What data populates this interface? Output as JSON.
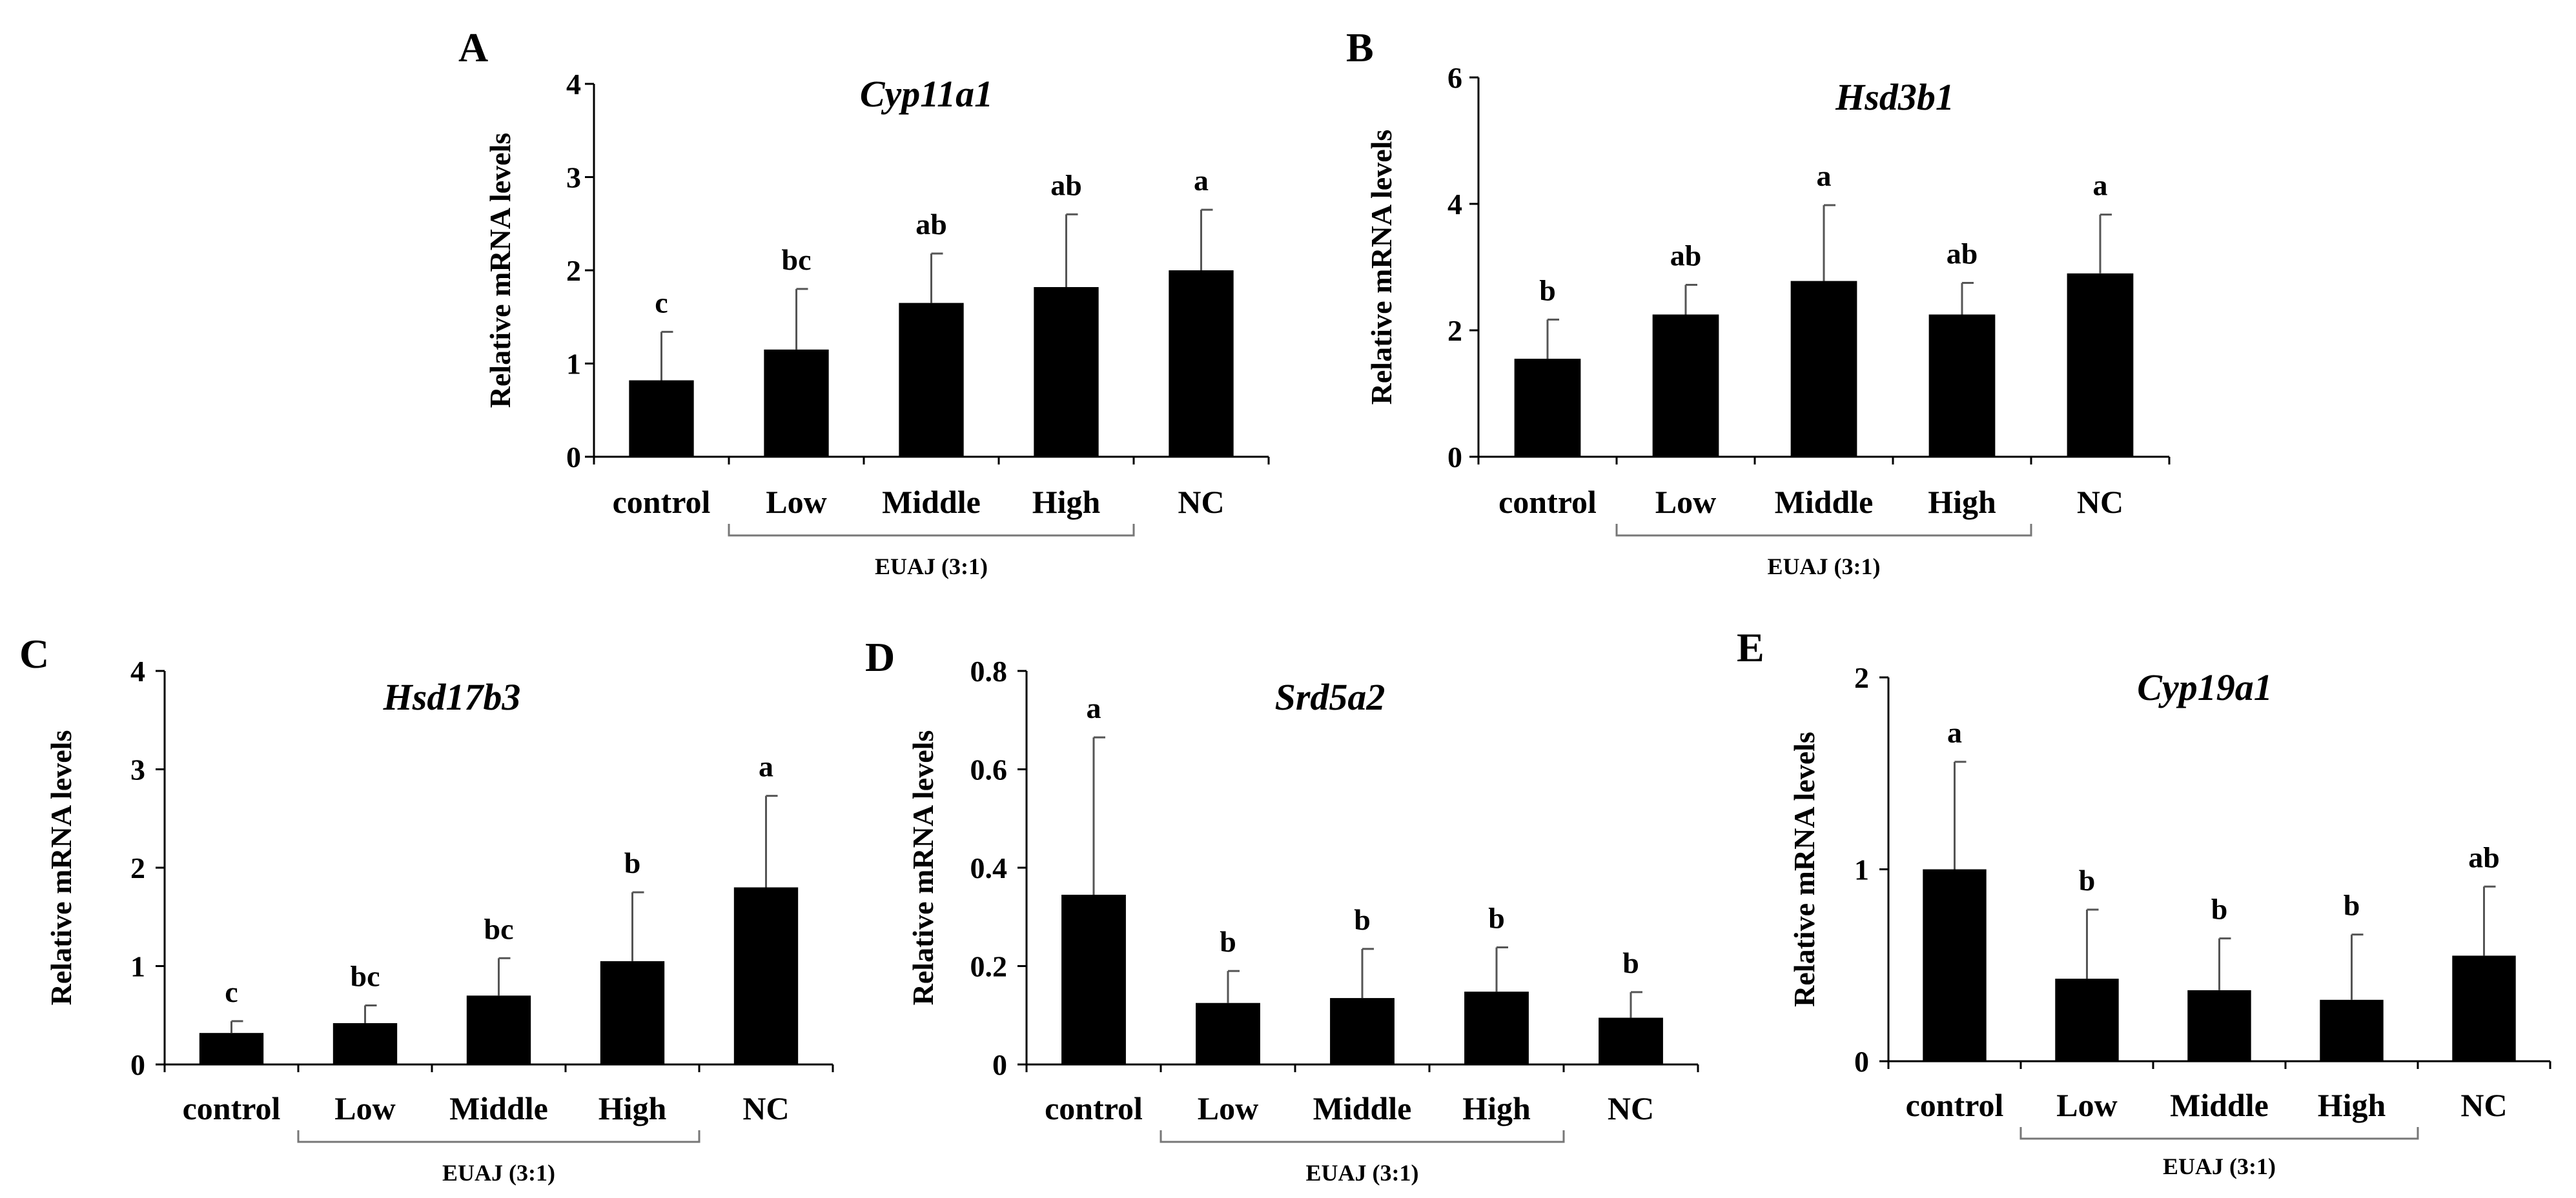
{
  "figure": {
    "bar_color": "#000000",
    "axis_color": "#000000",
    "bracket_color": "#777777"
  },
  "chart_data": [
    {
      "panel": "A",
      "type": "bar",
      "title": "Cyp11a1",
      "ylabel": "Relative mRNA levels",
      "xlabel": "",
      "categories": [
        "control",
        "Low",
        "Middle",
        "High",
        "NC"
      ],
      "values": [
        0.82,
        1.15,
        1.65,
        1.82,
        2.0
      ],
      "errors": [
        0.52,
        0.65,
        0.53,
        0.78,
        0.65
      ],
      "significance": [
        "c",
        "bc",
        "ab",
        "ab",
        "a"
      ],
      "ylim": [
        0,
        4
      ],
      "yticks": [
        "0",
        "1",
        "2",
        "3",
        "4"
      ],
      "group_label": "EUAJ (3:1)",
      "group_members": [
        "Low",
        "Middle",
        "High"
      ]
    },
    {
      "panel": "B",
      "type": "bar",
      "title": "Hsd3b1",
      "ylabel": "Relative mRNA levels",
      "xlabel": "",
      "categories": [
        "control",
        "Low",
        "Middle",
        "High",
        "NC"
      ],
      "values": [
        1.55,
        2.25,
        2.78,
        2.25,
        2.9
      ],
      "errors": [
        0.62,
        0.47,
        1.2,
        0.5,
        0.93
      ],
      "significance": [
        "b",
        "ab",
        "a",
        "ab",
        "a"
      ],
      "ylim": [
        0,
        6
      ],
      "yticks": [
        "0",
        "2",
        "4",
        "6"
      ],
      "group_label": "EUAJ (3:1)",
      "group_members": [
        "Low",
        "Middle",
        "High"
      ]
    },
    {
      "panel": "C",
      "type": "bar",
      "title": "Hsd17b3",
      "ylabel": "Relative mRNA levels",
      "xlabel": "",
      "categories": [
        "control",
        "Low",
        "Middle",
        "High",
        "NC"
      ],
      "values": [
        0.32,
        0.42,
        0.7,
        1.05,
        1.8
      ],
      "errors": [
        0.12,
        0.18,
        0.38,
        0.7,
        0.93
      ],
      "significance": [
        "c",
        "bc",
        "bc",
        "b",
        "a"
      ],
      "ylim": [
        0,
        4
      ],
      "yticks": [
        "0",
        "1",
        "2",
        "3",
        "4"
      ],
      "group_label": "EUAJ (3:1)",
      "group_members": [
        "Low",
        "Middle",
        "High"
      ]
    },
    {
      "panel": "D",
      "type": "bar",
      "title": "Srd5a2",
      "ylabel": "Relative mRNA levels",
      "xlabel": "",
      "categories": [
        "control",
        "Low",
        "Middle",
        "High",
        "NC"
      ],
      "values": [
        0.345,
        0.125,
        0.135,
        0.148,
        0.095
      ],
      "errors": [
        0.32,
        0.065,
        0.1,
        0.09,
        0.052
      ],
      "significance": [
        "a",
        "b",
        "b",
        "b",
        "b"
      ],
      "ylim": [
        0,
        0.8
      ],
      "yticks": [
        "0",
        "0.2",
        "0.4",
        "0.6",
        "0.8"
      ],
      "group_label": "EUAJ (3:1)",
      "group_members": [
        "Low",
        "Middle",
        "High"
      ]
    },
    {
      "panel": "E",
      "type": "bar",
      "title": "Cyp19a1",
      "ylabel": "Relative mRNA levels",
      "xlabel": "",
      "categories": [
        "control",
        "Low",
        "Middle",
        "High",
        "NC"
      ],
      "values": [
        1.0,
        0.43,
        0.37,
        0.32,
        0.55
      ],
      "errors": [
        0.56,
        0.36,
        0.27,
        0.34,
        0.36
      ],
      "significance": [
        "a",
        "b",
        "b",
        "b",
        "ab"
      ],
      "ylim": [
        0,
        2
      ],
      "yticks": [
        "0",
        "1",
        "2"
      ],
      "group_label": "EUAJ (3:1)",
      "group_members": [
        "Low",
        "Middle",
        "High"
      ]
    }
  ]
}
